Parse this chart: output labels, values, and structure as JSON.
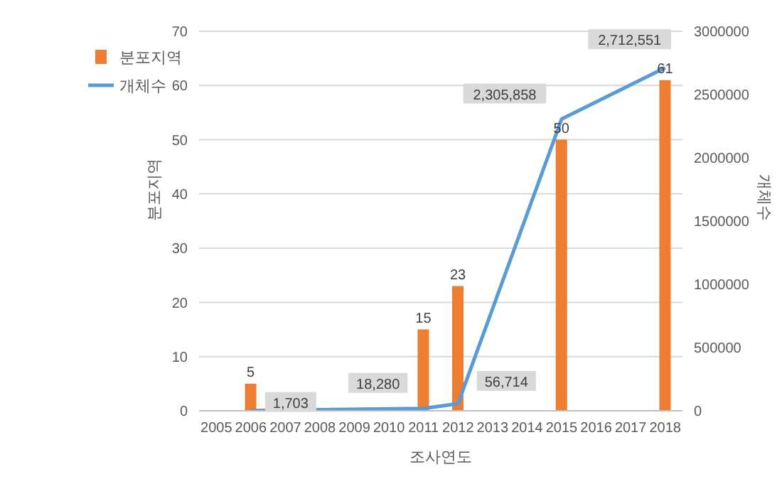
{
  "chart_data": {
    "type": "bar",
    "categories": [
      "2005",
      "2006",
      "2007",
      "2008",
      "2009",
      "2010",
      "2011",
      "2012",
      "2013",
      "2014",
      "2015",
      "2016",
      "2017",
      "2018"
    ],
    "series": [
      {
        "name": "분포지역",
        "color": "#ed7d31",
        "values": [
          null,
          5,
          null,
          null,
          null,
          null,
          15,
          23,
          null,
          null,
          50,
          null,
          null,
          61
        ]
      },
      {
        "name": "개체수",
        "type": "line",
        "axis": "y2",
        "color": "#5b9bd5",
        "values": [
          null,
          1703,
          null,
          null,
          null,
          null,
          18280,
          56714,
          null,
          null,
          2305858,
          null,
          null,
          2712551
        ],
        "value_labels": [
          null,
          "1,703",
          null,
          null,
          null,
          null,
          "18,280",
          "56,714",
          null,
          null,
          "2,305,858",
          null,
          null,
          "2,712,551"
        ]
      }
    ],
    "xlabel": "조사연도",
    "ylabel": "분포지역",
    "y2label": "개체수",
    "ylim": [
      0,
      70
    ],
    "yticks": [
      0,
      10,
      20,
      30,
      40,
      50,
      60,
      70
    ],
    "y2lim": [
      0,
      3000000
    ],
    "y2ticks": [
      0,
      500000,
      1000000,
      1500000,
      2000000,
      2500000,
      3000000
    ],
    "grid": "y",
    "legend": "top left",
    "data_labels": true,
    "marker": "none"
  }
}
